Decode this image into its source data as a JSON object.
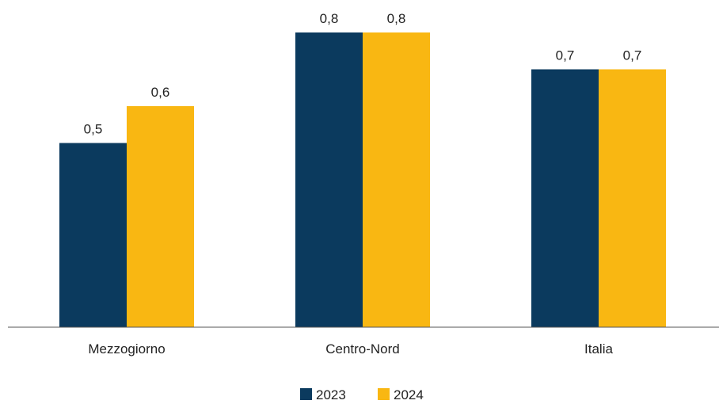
{
  "chart_data": {
    "type": "bar",
    "categories": [
      "Mezzogiorno",
      "Centro-Nord",
      "Italia"
    ],
    "series": [
      {
        "name": "2023",
        "values": [
          0.5,
          0.8,
          0.7
        ],
        "value_labels": [
          "0,5",
          "0,8",
          "0,7"
        ]
      },
      {
        "name": "2024",
        "values": [
          0.6,
          0.8,
          0.7
        ],
        "value_labels": [
          "0,6",
          "0,8",
          "0,7"
        ]
      }
    ],
    "title": "",
    "xlabel": "",
    "ylabel": "",
    "ylim": [
      0,
      0.8
    ],
    "y_axis_visible": false,
    "grid": false,
    "legend_position": "bottom-center",
    "colors": {
      "2023": "#0b3a5e",
      "2024": "#f9b712"
    }
  }
}
